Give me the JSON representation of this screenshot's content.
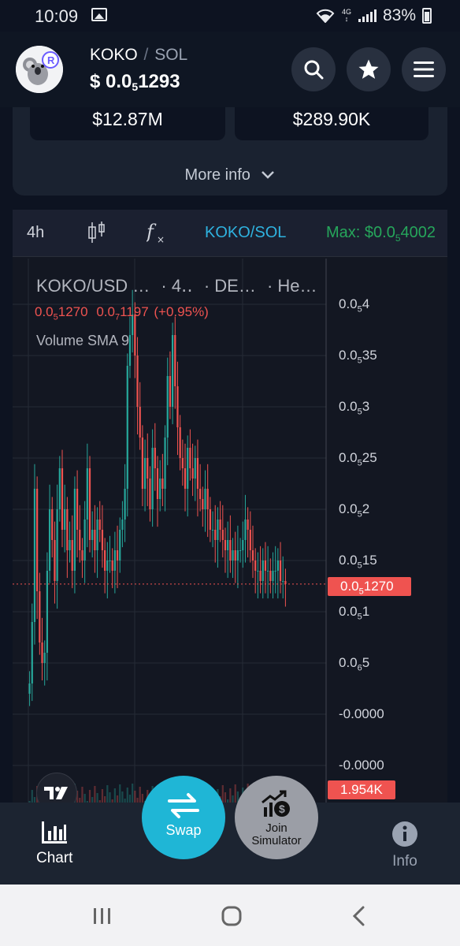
{
  "status_bar": {
    "time": "10:09",
    "battery": "83%",
    "lte_top": "4G",
    "lte_bottom": "↕"
  },
  "header": {
    "base": "KOKO",
    "separator": "/",
    "quote": "SOL",
    "price_prefix": "$ 0.0",
    "price_sub": "5",
    "price_suffix": "1293",
    "search_icon": "search-icon",
    "star_icon": "star-icon",
    "menu_icon": "menu-icon"
  },
  "stats": {
    "left_value": "$12.87M",
    "right_value": "$289.90K",
    "more_info": "More info"
  },
  "chart_toolbar": {
    "interval": "4h",
    "indicator_icon": "fx-icon",
    "pair": "KOKO/SOL",
    "max_prefix": "Max: $0.0",
    "max_sub": "5",
    "max_suffix": "4002"
  },
  "chart_legend": {
    "symbol": "KOKO/USD …",
    "interval": "· 4‥",
    "exchange": "· DE…",
    "style": "· He…",
    "value_a_prefix": "0.0",
    "value_a_sub": "5",
    "value_a_suffix": "1270",
    "value_b_prefix": "0.0",
    "value_b_sub": "7",
    "value_b_suffix": "1197",
    "change": "(+0.95%)",
    "volume_indicator": "Volume SMA 9"
  },
  "chart_data": {
    "type": "candlestick",
    "interval": "4h",
    "y_axis_ticks": [
      {
        "prefix": "0.0",
        "sub": "5",
        "suffix": "4"
      },
      {
        "prefix": "0.0",
        "sub": "5",
        "suffix": "35"
      },
      {
        "prefix": "0.0",
        "sub": "5",
        "suffix": "3"
      },
      {
        "prefix": "0.0",
        "sub": "5",
        "suffix": "25"
      },
      {
        "prefix": "0.0",
        "sub": "5",
        "suffix": "2"
      },
      {
        "prefix": "0.0",
        "sub": "5",
        "suffix": "15"
      },
      {
        "prefix": "0.0",
        "sub": "5",
        "suffix": "1"
      },
      {
        "prefix": "0.0",
        "sub": "6",
        "suffix": "5"
      },
      {
        "prefix": "-0.0000",
        "sub": "",
        "suffix": ""
      },
      {
        "prefix": "-0.0000",
        "sub": "",
        "suffix": ""
      }
    ],
    "ylim_e6": [
      0,
      40
    ],
    "tick_values_e6": [
      40,
      35,
      30,
      25,
      20,
      15,
      10,
      5
    ],
    "last_price_e6": 12.7,
    "last_price_label_prefix": "0.0",
    "last_price_label_sub": "5",
    "last_price_label_suffix": "1270",
    "volume_label": "1.954K",
    "closes_e6": [
      3,
      9,
      22,
      12,
      7,
      5,
      6,
      14,
      20,
      17,
      13,
      20,
      24,
      18,
      20,
      16,
      17,
      14,
      22,
      18,
      16,
      15,
      19,
      24,
      17,
      18,
      16,
      19,
      18,
      16,
      14,
      15,
      15,
      14,
      16,
      15,
      18,
      19,
      22,
      34,
      37,
      39,
      35,
      30,
      27,
      22,
      25,
      23,
      20,
      26,
      24,
      21,
      23,
      22,
      27,
      33,
      30,
      37,
      32,
      28,
      25,
      24,
      22,
      26,
      24,
      23,
      25,
      22,
      21,
      20,
      22,
      20,
      18,
      18,
      17,
      19,
      18,
      17,
      16,
      17,
      15,
      16,
      15,
      16,
      16,
      17,
      19,
      18,
      16,
      15,
      14,
      14,
      13,
      15,
      14,
      14,
      13,
      14,
      14,
      15,
      13,
      13,
      12.7
    ],
    "colors": {
      "up": "#26a69a",
      "down": "#ef5350",
      "background": "#131722",
      "grid": "#262b36"
    }
  },
  "bottom_nav": {
    "chart_label": "Chart",
    "swap_label": "Swap",
    "sim_label_1": "Join",
    "sim_label_2": "Simulator",
    "info_label": "Info"
  }
}
